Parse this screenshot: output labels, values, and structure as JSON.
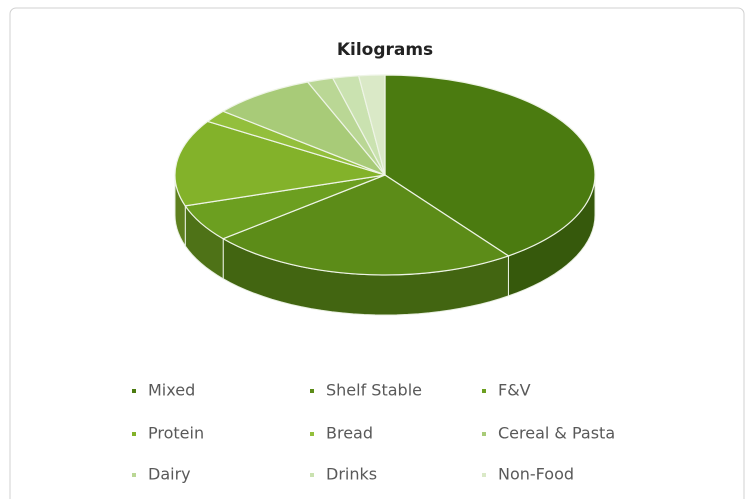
{
  "chart_data": {
    "type": "pie3d",
    "title": "Kilograms",
    "categories": [
      "Mixed",
      "Shelf Stable",
      "F&V",
      "Protein",
      "Bread",
      "Cereal & Pasta",
      "Dairy",
      "Drinks",
      "Non-Food"
    ],
    "values": [
      40,
      24,
      6,
      14,
      2,
      8,
      2,
      2,
      2
    ],
    "colors": [
      "#4b7b10",
      "#5c8c18",
      "#6c9f20",
      "#83b22a",
      "#93bf3c",
      "#a8cb78",
      "#bad795",
      "#cae2b0",
      "#dae9c7"
    ],
    "legend": "bottom"
  }
}
